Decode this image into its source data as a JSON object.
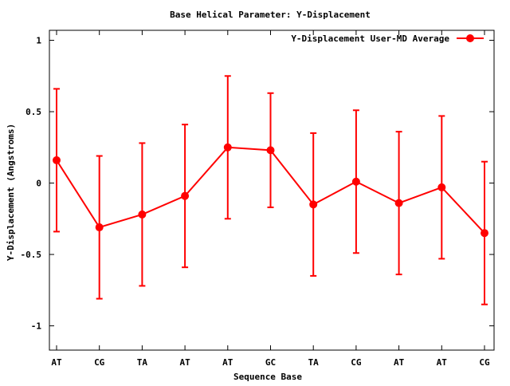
{
  "chart_data": {
    "type": "line",
    "title": "Base  Helical Parameter: Y-Displacement",
    "xlabel": "Sequence Base",
    "ylabel": "Y-Displacement (Angstroms)",
    "categories": [
      "AT",
      "CG",
      "TA",
      "AT",
      "AT",
      "GC",
      "TA",
      "CG",
      "AT",
      "AT",
      "CG"
    ],
    "ylim": [
      -1.17,
      1.07
    ],
    "yticks": [
      1,
      0.5,
      0,
      -0.5,
      -1
    ],
    "ytick_labels": [
      "1",
      "0.5",
      "0",
      "-0.5",
      "-1"
    ],
    "grid": false,
    "legend_position": "top-right",
    "series": [
      {
        "name": "Y-Displacement User-MD Average",
        "color": "#ff0000",
        "values": [
          0.16,
          -0.31,
          -0.22,
          -0.09,
          0.25,
          0.23,
          -0.15,
          0.01,
          -0.14,
          -0.03,
          -0.35
        ],
        "error_high": [
          0.66,
          0.19,
          0.28,
          0.41,
          0.75,
          0.63,
          0.35,
          0.51,
          0.36,
          0.47,
          0.15
        ],
        "error_low": [
          -0.34,
          -0.81,
          -0.72,
          -0.59,
          -0.25,
          -0.17,
          -0.65,
          -0.49,
          -0.64,
          -0.53,
          -0.85
        ]
      }
    ]
  }
}
